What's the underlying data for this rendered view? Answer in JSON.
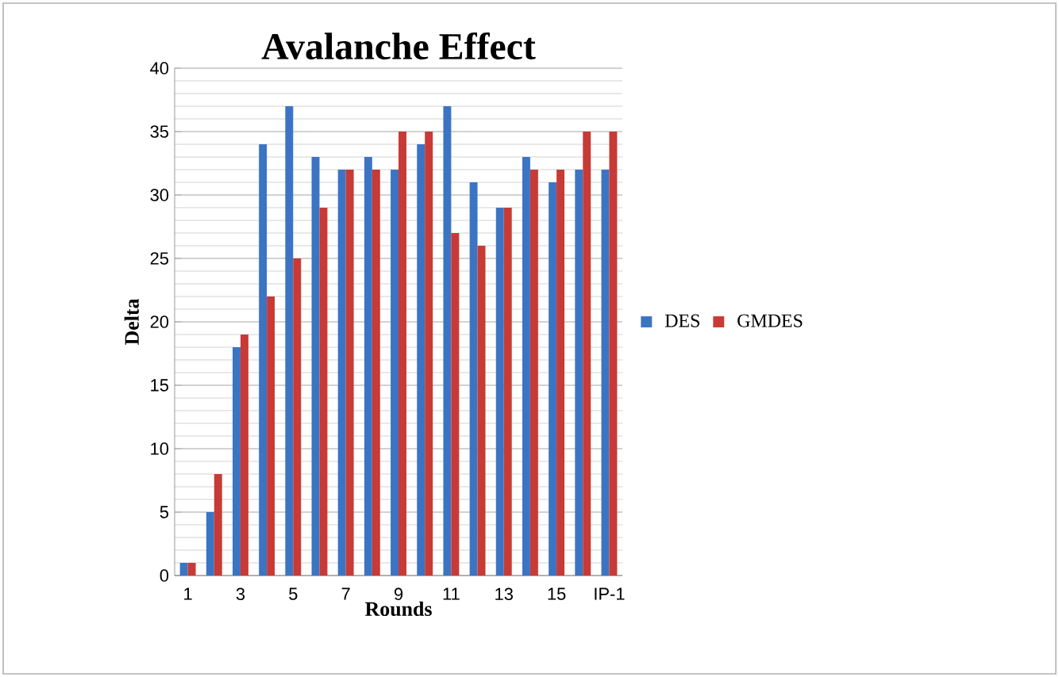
{
  "chart_data": {
    "type": "bar",
    "title": "Avalanche Effect",
    "xlabel": "Rounds",
    "ylabel": "Delta",
    "categories": [
      "1",
      null,
      "3",
      null,
      "5",
      null,
      "7",
      null,
      "9",
      null,
      "11",
      null,
      "13",
      null,
      "15",
      null,
      "IP-1"
    ],
    "series": [
      {
        "name": "DES",
        "color": "#3c74c4",
        "values": [
          1,
          5,
          18,
          34,
          37,
          33,
          32,
          33,
          32,
          34,
          37,
          31,
          29,
          33,
          31,
          32,
          32
        ]
      },
      {
        "name": "GMDES",
        "color": "#c83a36",
        "values": [
          1,
          8,
          19,
          22,
          25,
          29,
          32,
          32,
          35,
          35,
          27,
          26,
          29,
          32,
          32,
          35,
          35
        ]
      }
    ],
    "ylim": [
      0,
      40
    ],
    "yticks": [
      0,
      5,
      10,
      15,
      20,
      25,
      30,
      35,
      40
    ],
    "grid": "y",
    "legend": "right"
  }
}
